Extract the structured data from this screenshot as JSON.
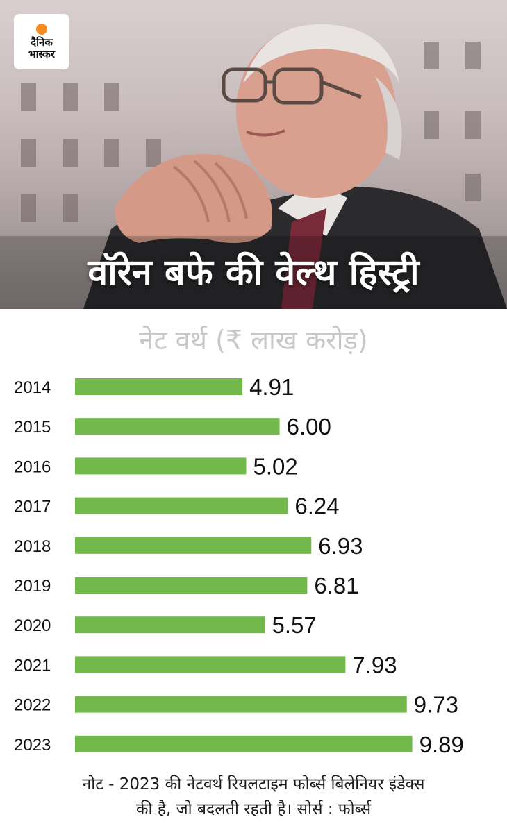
{
  "brand": {
    "line1": "दैनिक",
    "line2": "भास्कर",
    "accent": "#f58a1f"
  },
  "headline": "वॉरेन बफे की वेल्थ हिस्ट्री",
  "chart_data": {
    "type": "bar",
    "orientation": "horizontal",
    "title": "नेट वर्थ (₹ लाख करोड़)",
    "categories": [
      "2014",
      "2015",
      "2016",
      "2017",
      "2018",
      "2019",
      "2020",
      "2021",
      "2022",
      "2023"
    ],
    "values": [
      4.91,
      6.0,
      5.02,
      6.24,
      6.93,
      6.81,
      5.57,
      7.93,
      9.73,
      9.89
    ],
    "value_labels": [
      "4.91",
      "6.00",
      "5.02",
      "6.24",
      "6.93",
      "6.81",
      "5.57",
      "7.93",
      "9.73",
      "9.89"
    ],
    "xlim": [
      0,
      10
    ],
    "bar_color": "#72b84a",
    "grid": false,
    "xlabel": "",
    "ylabel": ""
  },
  "note": {
    "line1": "नोट - 2023 की नेटवर्थ रियलटाइम फोर्ब्स बिलेनियर इंडेक्स",
    "line2": "की है, जो बदलती रहती है। सोर्स : फोर्ब्स"
  }
}
